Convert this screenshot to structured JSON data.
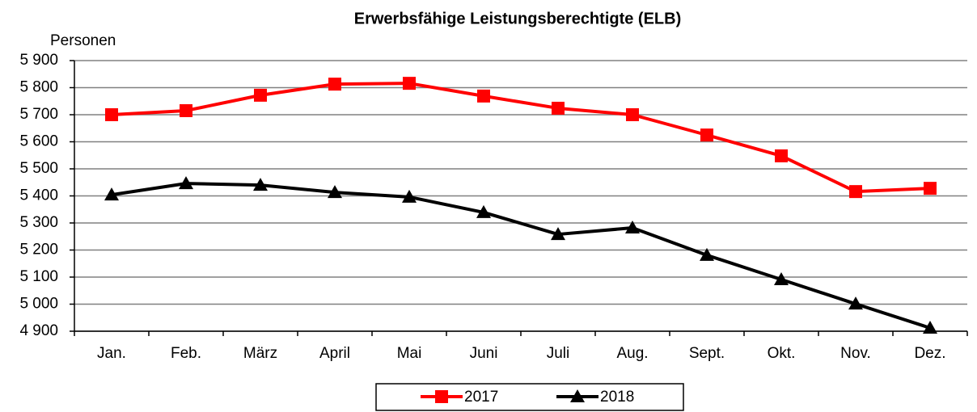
{
  "chart_data": {
    "type": "line",
    "title": "Erwerbsfähige Leistungsberechtigte (ELB)",
    "y_label": "Personen",
    "categories": [
      "Jan.",
      "Feb.",
      "März",
      "April",
      "Mai",
      "Juni",
      "Juli",
      "Aug.",
      "Sept.",
      "Okt.",
      "Nov.",
      "Dez."
    ],
    "series": [
      {
        "name": "2017",
        "color": "#ff0000",
        "marker": "square",
        "values": [
          5700,
          5715,
          5772,
          5813,
          5816,
          5769,
          5724,
          5700,
          5625,
          5548,
          5416,
          5428
        ]
      },
      {
        "name": "2018",
        "color": "#000000",
        "marker": "triangle",
        "values": [
          5404,
          5446,
          5440,
          5413,
          5396,
          5339,
          5258,
          5282,
          5181,
          5091,
          5001,
          4912
        ]
      }
    ],
    "ylim": [
      4900,
      5900
    ],
    "yticks": [
      {
        "value": 4900,
        "label": "4 900"
      },
      {
        "value": 5000,
        "label": "5 000"
      },
      {
        "value": 5100,
        "label": "5 100"
      },
      {
        "value": 5200,
        "label": "5 200"
      },
      {
        "value": 5300,
        "label": "5 300"
      },
      {
        "value": 5400,
        "label": "5 400"
      },
      {
        "value": 5500,
        "label": "5 500"
      },
      {
        "value": 5600,
        "label": "5 600"
      },
      {
        "value": 5700,
        "label": "5 700"
      },
      {
        "value": 5800,
        "label": "5 800"
      },
      {
        "value": 5900,
        "label": "5 900"
      }
    ],
    "grid": true,
    "legend": "bottom"
  }
}
